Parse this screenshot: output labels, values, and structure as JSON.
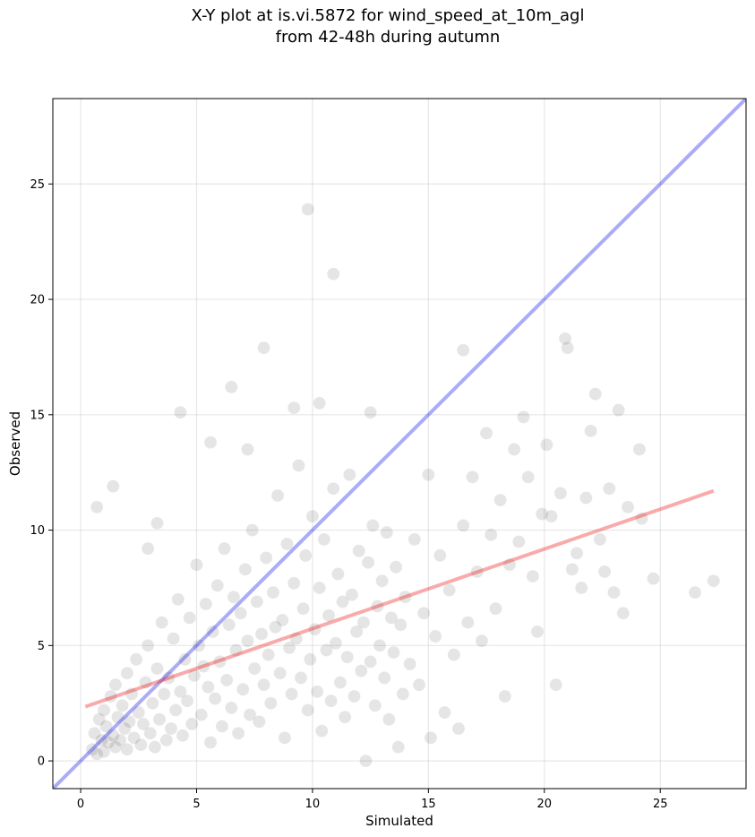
{
  "title_line1": "X-Y plot at is.vi.5872 for wind_speed_at_10m_agl",
  "title_line2": "from 42-48h during autumn",
  "chart_data": {
    "type": "scatter",
    "title": "X-Y plot at is.vi.5872 for wind_speed_at_10m_agl\nfrom 42-48h during autumn",
    "xlabel": "Simulated",
    "ylabel": "Observed",
    "xlim": [
      -1.2,
      28.7
    ],
    "ylim": [
      -1.2,
      28.7
    ],
    "xticks": [
      0,
      5,
      10,
      15,
      20,
      25
    ],
    "yticks": [
      0,
      5,
      10,
      15,
      20,
      25
    ],
    "grid": true,
    "legend": "none",
    "points_color": "#000000",
    "points_alpha": 0.1,
    "lines": [
      {
        "kind": "one_to_one",
        "color": "#0000ee",
        "alpha": 0.33,
        "x": [
          -1.2,
          28.7
        ],
        "y": [
          -1.2,
          28.7
        ]
      },
      {
        "kind": "fit",
        "color": "#ee0000",
        "alpha": 0.33,
        "x": [
          0.2,
          27.3
        ],
        "y": [
          2.35,
          11.7
        ]
      }
    ],
    "points": [
      [
        0.5,
        0.5
      ],
      [
        0.6,
        1.2
      ],
      [
        0.7,
        0.3
      ],
      [
        0.8,
        1.8
      ],
      [
        0.9,
        0.9
      ],
      [
        1.0,
        2.2
      ],
      [
        1.0,
        0.4
      ],
      [
        1.1,
        1.5
      ],
      [
        1.2,
        0.8
      ],
      [
        1.3,
        2.8
      ],
      [
        1.4,
        1.1
      ],
      [
        1.5,
        0.6
      ],
      [
        1.5,
        3.3
      ],
      [
        1.6,
        1.9
      ],
      [
        1.7,
        0.9
      ],
      [
        1.8,
        2.4
      ],
      [
        1.9,
        1.4
      ],
      [
        2.0,
        0.5
      ],
      [
        2.0,
        3.8
      ],
      [
        2.1,
        1.7
      ],
      [
        2.2,
        2.9
      ],
      [
        2.3,
        1.0
      ],
      [
        2.4,
        4.4
      ],
      [
        2.5,
        2.1
      ],
      [
        2.6,
        0.7
      ],
      [
        2.7,
        1.6
      ],
      [
        2.8,
        3.4
      ],
      [
        2.9,
        5.0
      ],
      [
        3.0,
        1.2
      ],
      [
        3.1,
        2.5
      ],
      [
        3.2,
        0.6
      ],
      [
        3.3,
        4.0
      ],
      [
        3.4,
        1.8
      ],
      [
        3.5,
        6.0
      ],
      [
        3.6,
        2.9
      ],
      [
        3.7,
        0.9
      ],
      [
        3.8,
        3.6
      ],
      [
        3.9,
        1.4
      ],
      [
        4.0,
        5.3
      ],
      [
        4.1,
        2.2
      ],
      [
        4.2,
        7.0
      ],
      [
        4.3,
        3.0
      ],
      [
        4.4,
        1.1
      ],
      [
        4.5,
        4.4
      ],
      [
        4.6,
        2.6
      ],
      [
        4.7,
        6.2
      ],
      [
        4.8,
        1.6
      ],
      [
        4.9,
        3.7
      ],
      [
        5.0,
        8.5
      ],
      [
        5.1,
        5.0
      ],
      [
        5.2,
        2.0
      ],
      [
        5.3,
        4.1
      ],
      [
        5.4,
        6.8
      ],
      [
        5.5,
        3.2
      ],
      [
        5.6,
        0.8
      ],
      [
        5.7,
        5.6
      ],
      [
        5.8,
        2.7
      ],
      [
        5.9,
        7.6
      ],
      [
        6.0,
        4.3
      ],
      [
        6.1,
        1.5
      ],
      [
        6.2,
        9.2
      ],
      [
        6.3,
        3.5
      ],
      [
        6.4,
        5.9
      ],
      [
        6.5,
        2.3
      ],
      [
        6.6,
        7.1
      ],
      [
        6.7,
        4.8
      ],
      [
        6.8,
        1.2
      ],
      [
        6.9,
        6.4
      ],
      [
        7.0,
        3.1
      ],
      [
        7.1,
        8.3
      ],
      [
        7.2,
        5.2
      ],
      [
        7.3,
        2.0
      ],
      [
        7.4,
        10.0
      ],
      [
        7.5,
        4.0
      ],
      [
        7.6,
        6.9
      ],
      [
        7.7,
        1.7
      ],
      [
        7.8,
        5.5
      ],
      [
        7.9,
        3.3
      ],
      [
        8.0,
        8.8
      ],
      [
        8.1,
        4.6
      ],
      [
        8.2,
        2.5
      ],
      [
        8.3,
        7.3
      ],
      [
        8.4,
        5.8
      ],
      [
        8.5,
        11.5
      ],
      [
        8.6,
        3.8
      ],
      [
        8.7,
        6.1
      ],
      [
        8.8,
        1.0
      ],
      [
        8.9,
        9.4
      ],
      [
        9.0,
        4.9
      ],
      [
        9.1,
        2.9
      ],
      [
        9.2,
        7.7
      ],
      [
        9.3,
        5.3
      ],
      [
        9.4,
        12.8
      ],
      [
        9.5,
        3.6
      ],
      [
        9.6,
        6.6
      ],
      [
        9.7,
        8.9
      ],
      [
        9.8,
        2.2
      ],
      [
        9.9,
        4.4
      ],
      [
        10.0,
        10.6
      ],
      [
        10.1,
        5.7
      ],
      [
        10.2,
        3.0
      ],
      [
        10.3,
        7.5
      ],
      [
        10.4,
        1.3
      ],
      [
        10.5,
        9.6
      ],
      [
        10.6,
        4.8
      ],
      [
        10.7,
        6.3
      ],
      [
        10.8,
        2.6
      ],
      [
        10.9,
        11.8
      ],
      [
        11.0,
        5.1
      ],
      [
        11.1,
        8.1
      ],
      [
        11.2,
        3.4
      ],
      [
        11.3,
        6.9
      ],
      [
        11.4,
        1.9
      ],
      [
        11.5,
        4.5
      ],
      [
        11.6,
        12.4
      ],
      [
        11.7,
        7.2
      ],
      [
        11.8,
        2.8
      ],
      [
        11.9,
        5.6
      ],
      [
        12.0,
        9.1
      ],
      [
        12.1,
        3.9
      ],
      [
        12.2,
        6.0
      ],
      [
        12.3,
        0.0
      ],
      [
        12.4,
        8.6
      ],
      [
        12.5,
        4.3
      ],
      [
        12.6,
        10.2
      ],
      [
        12.7,
        2.4
      ],
      [
        12.8,
        6.7
      ],
      [
        12.9,
        5.0
      ],
      [
        13.0,
        7.8
      ],
      [
        13.1,
        3.6
      ],
      [
        13.2,
        9.9
      ],
      [
        13.3,
        1.8
      ],
      [
        13.4,
        6.2
      ],
      [
        13.5,
        4.7
      ],
      [
        13.6,
        8.4
      ],
      [
        13.7,
        0.6
      ],
      [
        13.8,
        5.9
      ],
      [
        13.9,
        2.9
      ],
      [
        14.0,
        7.1
      ],
      [
        14.2,
        4.2
      ],
      [
        14.4,
        9.6
      ],
      [
        14.6,
        3.3
      ],
      [
        14.8,
        6.4
      ],
      [
        15.0,
        12.4
      ],
      [
        15.1,
        1.0
      ],
      [
        15.3,
        5.4
      ],
      [
        15.5,
        8.9
      ],
      [
        15.7,
        2.1
      ],
      [
        15.9,
        7.4
      ],
      [
        16.1,
        4.6
      ],
      [
        16.3,
        1.4
      ],
      [
        16.5,
        10.2
      ],
      [
        16.7,
        6.0
      ],
      [
        16.9,
        12.3
      ],
      [
        17.1,
        8.2
      ],
      [
        17.3,
        5.2
      ],
      [
        17.5,
        14.2
      ],
      [
        17.7,
        9.8
      ],
      [
        17.9,
        6.6
      ],
      [
        18.1,
        11.3
      ],
      [
        18.3,
        2.8
      ],
      [
        18.5,
        8.5
      ],
      [
        18.7,
        13.5
      ],
      [
        18.9,
        9.5
      ],
      [
        19.1,
        14.9
      ],
      [
        19.3,
        12.3
      ],
      [
        19.5,
        8.0
      ],
      [
        19.7,
        5.6
      ],
      [
        19.9,
        10.7
      ],
      [
        20.1,
        13.7
      ],
      [
        20.3,
        10.6
      ],
      [
        20.5,
        3.3
      ],
      [
        20.7,
        11.6
      ],
      [
        20.9,
        18.3
      ],
      [
        21.0,
        17.9
      ],
      [
        21.2,
        8.3
      ],
      [
        21.4,
        9.0
      ],
      [
        21.6,
        7.5
      ],
      [
        21.8,
        11.4
      ],
      [
        22.0,
        14.3
      ],
      [
        22.2,
        15.9
      ],
      [
        22.4,
        9.6
      ],
      [
        22.6,
        8.2
      ],
      [
        22.8,
        11.8
      ],
      [
        23.0,
        7.3
      ],
      [
        23.2,
        15.2
      ],
      [
        23.4,
        6.4
      ],
      [
        23.6,
        11.0
      ],
      [
        24.1,
        13.5
      ],
      [
        24.2,
        10.5
      ],
      [
        24.7,
        7.9
      ],
      [
        26.5,
        7.3
      ],
      [
        27.3,
        7.8
      ],
      [
        9.8,
        23.9
      ],
      [
        10.9,
        21.1
      ],
      [
        7.9,
        17.9
      ],
      [
        6.5,
        16.2
      ],
      [
        4.3,
        15.1
      ],
      [
        9.2,
        15.3
      ],
      [
        12.5,
        15.1
      ],
      [
        16.5,
        17.8
      ],
      [
        10.3,
        15.5
      ],
      [
        5.6,
        13.8
      ],
      [
        7.2,
        13.5
      ],
      [
        0.7,
        11.0
      ],
      [
        1.4,
        11.9
      ],
      [
        3.3,
        10.3
      ],
      [
        2.9,
        9.2
      ]
    ]
  }
}
